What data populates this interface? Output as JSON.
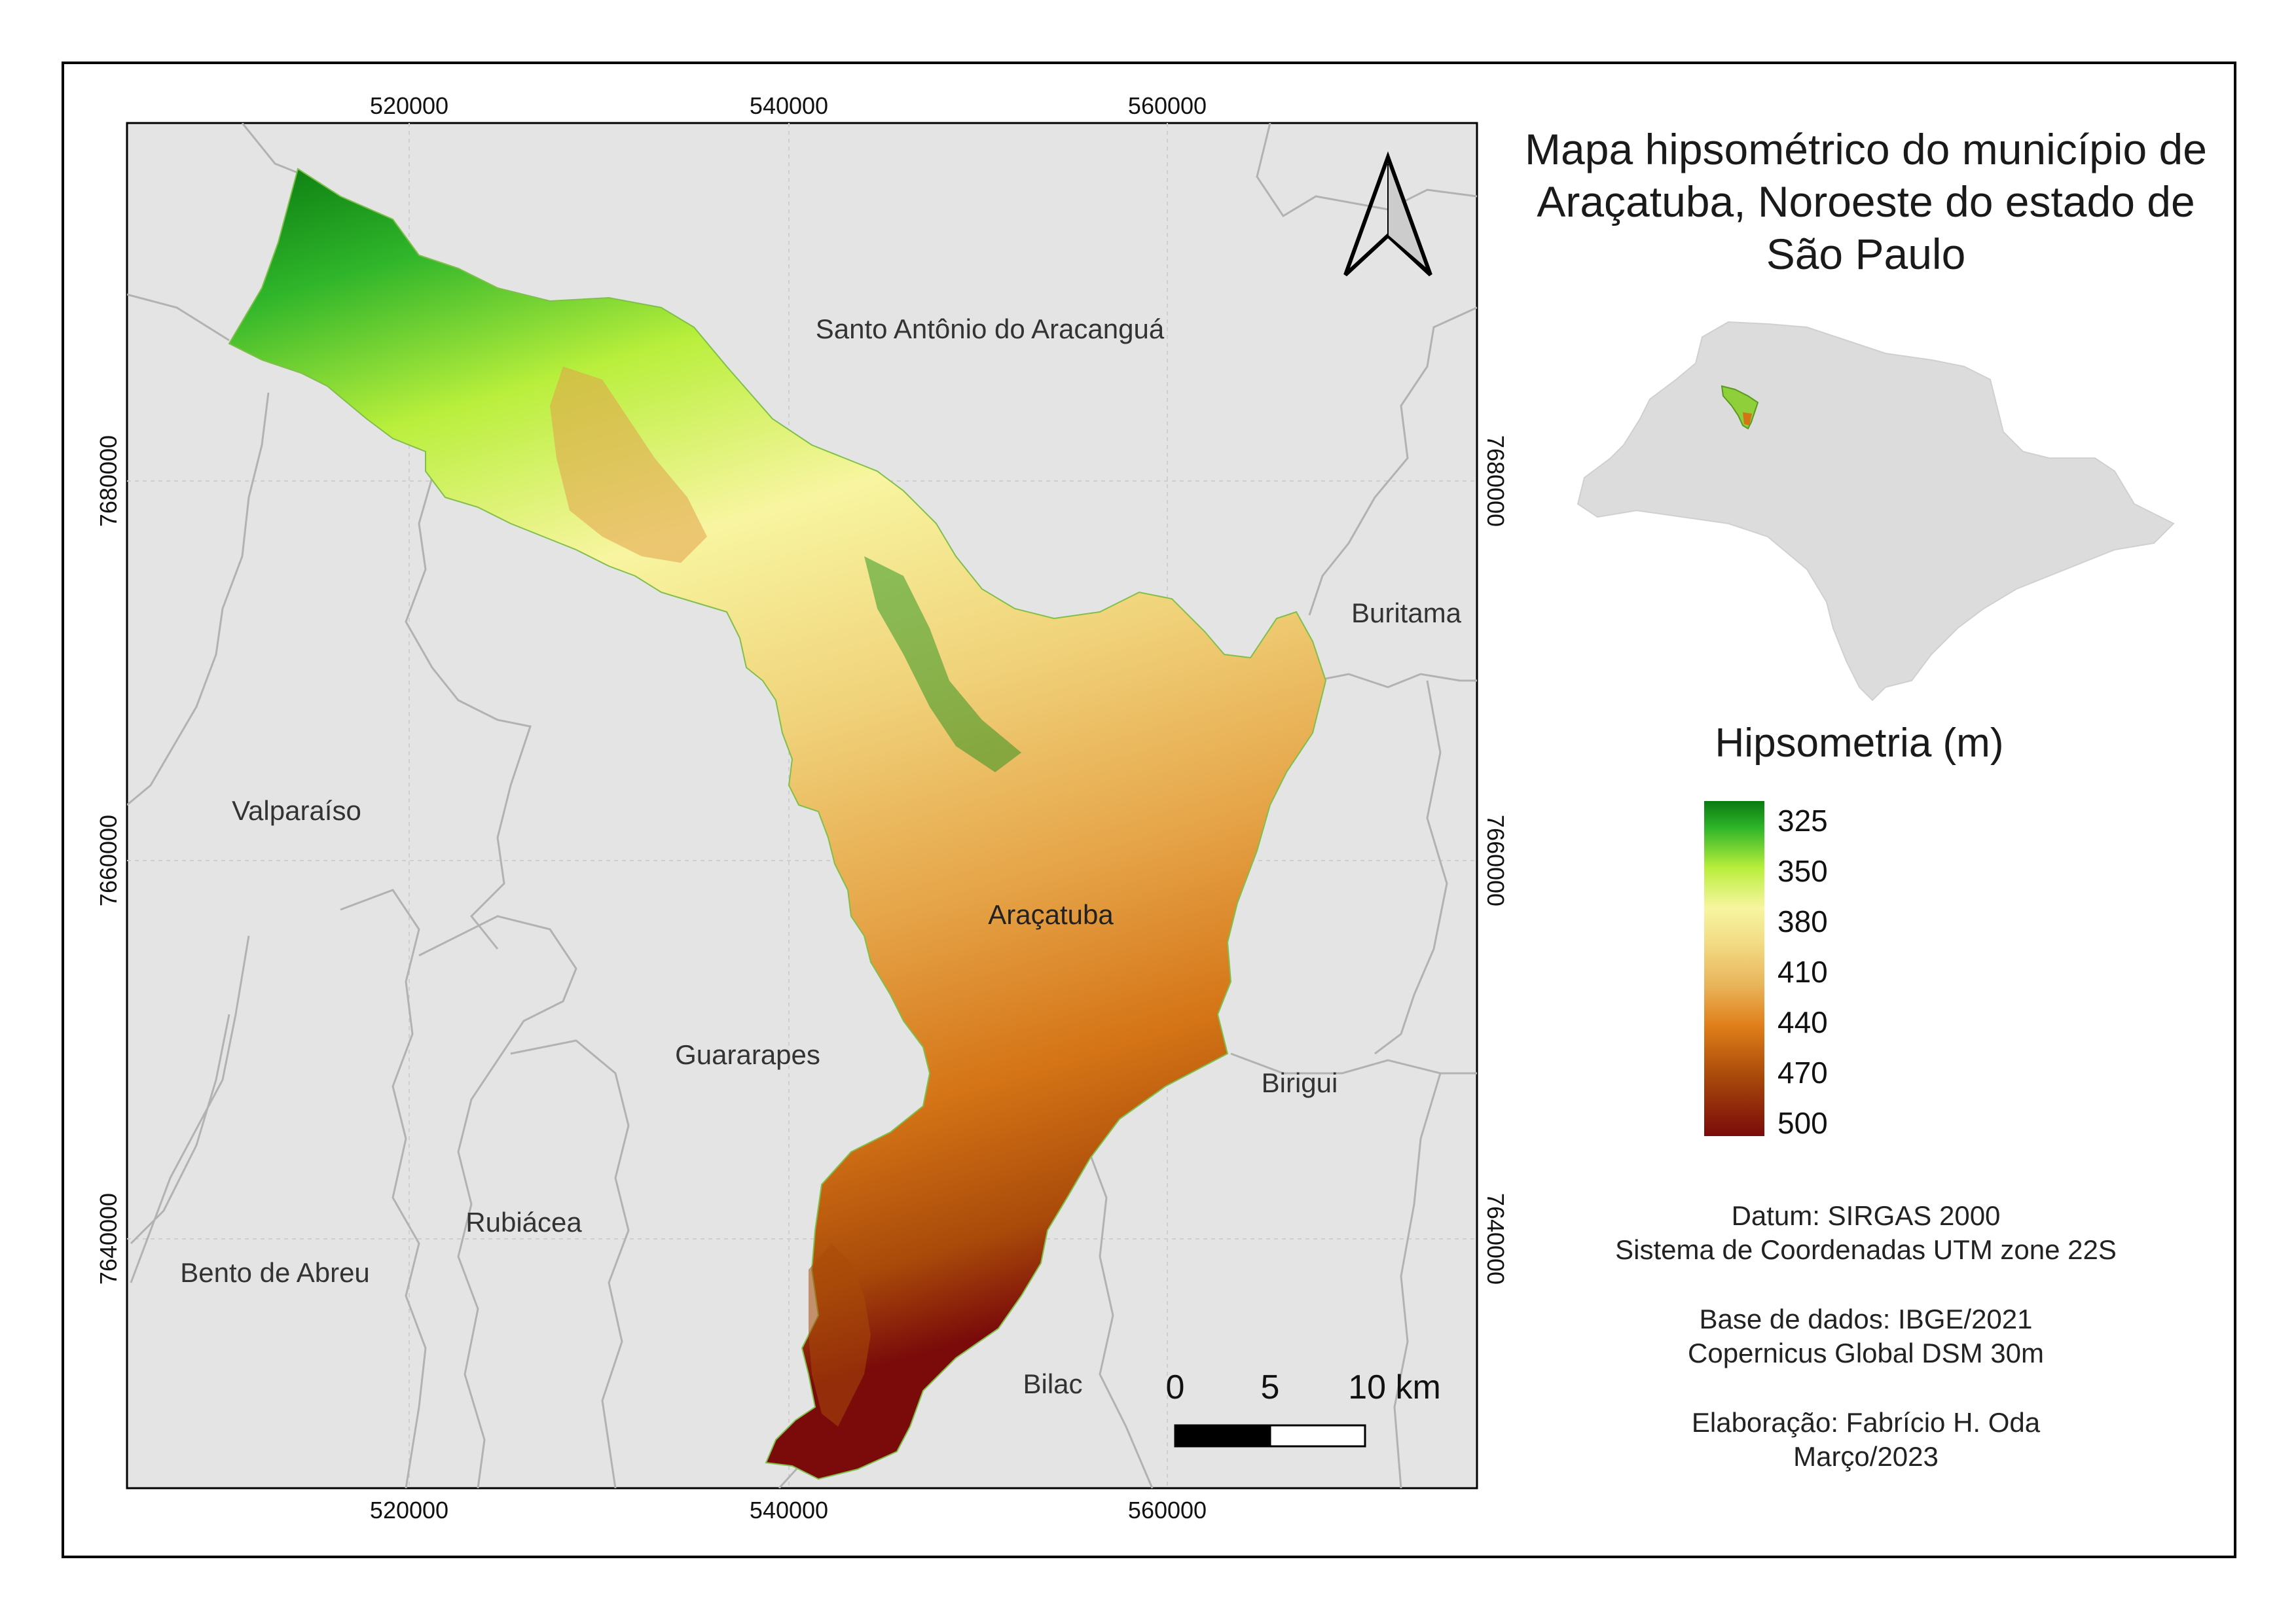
{
  "title": "Mapa hipsométrico do município de Araçatuba, Noroeste do estado de São Paulo",
  "axes": {
    "x_ticks": [
      "520000",
      "540000",
      "560000"
    ],
    "y_ticks": [
      "7680000",
      "7660000",
      "7640000"
    ]
  },
  "places": {
    "santo_antonio": "Santo Antônio do Aracanguá",
    "buritama": "Buritama",
    "valparaiso": "Valparaíso",
    "aracatuba": "Araçatuba",
    "guararapes": "Guararapes",
    "birigui": "Birigui",
    "rubiacea": "Rubiácea",
    "bento_de_abreu": "Bento de Abreu",
    "bilac": "Bilac"
  },
  "legend": {
    "title": "Hipsometria (m)",
    "values": [
      "325",
      "350",
      "380",
      "410",
      "440",
      "470",
      "500"
    ],
    "colors": [
      "#0a7a10",
      "#b9ef3c",
      "#f8f5a0",
      "#e9b45a",
      "#e07f1a",
      "#a94a0a",
      "#7a0b0a"
    ]
  },
  "scalebar": {
    "labels": [
      "0",
      "5",
      "10 km"
    ]
  },
  "info": {
    "datum": "Datum: SIRGAS 2000",
    "crs": "Sistema de Coordenadas UTM zone 22S",
    "base": "Base de dados: IBGE/2021",
    "dem": "Copernicus Global DSM 30m",
    "author": "Elaboração: Fabrício H. Oda",
    "date": "Março/2023"
  },
  "colors": {
    "background": "#e4e4e4",
    "boundary": "#b0b0b0",
    "grid": "#cfcfcf",
    "state": "#dcdcdc"
  }
}
